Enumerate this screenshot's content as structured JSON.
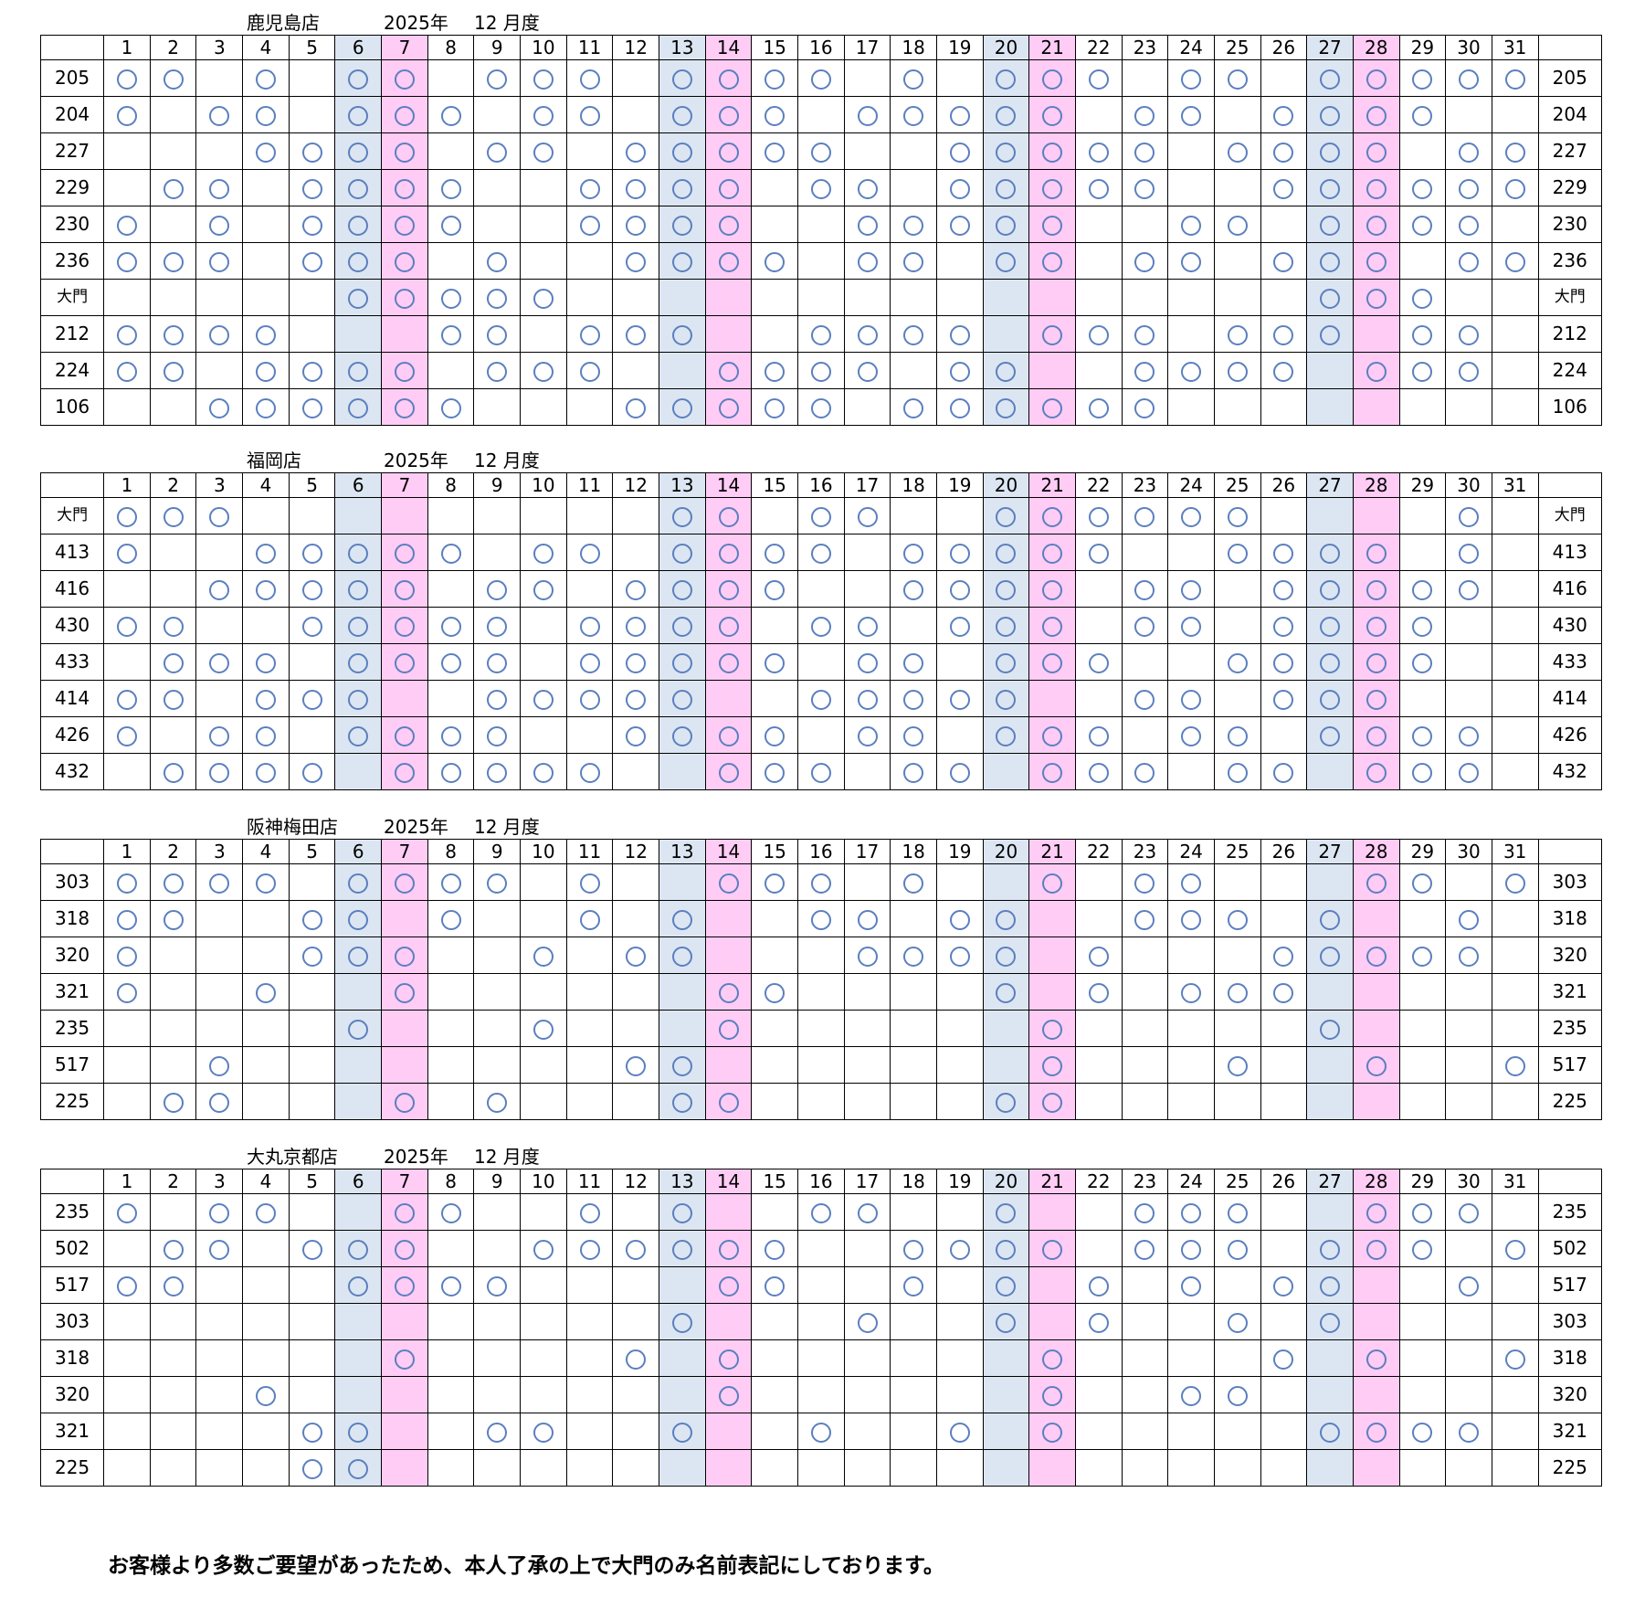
{
  "mark": "〇",
  "colors": {
    "sunday_col": "#dce6f2",
    "holiday_col": "#ffccf5",
    "circle": "#5b7fbf"
  },
  "sunday_days": [
    6,
    13,
    20,
    27
  ],
  "pink_days": [
    7,
    14,
    21,
    28
  ],
  "days": [
    1,
    2,
    3,
    4,
    5,
    6,
    7,
    8,
    9,
    10,
    11,
    12,
    13,
    14,
    15,
    16,
    17,
    18,
    19,
    20,
    21,
    22,
    23,
    24,
    25,
    26,
    27,
    28,
    29,
    30,
    31
  ],
  "stores": [
    {
      "name": "鹿児島店",
      "year": "2025年",
      "month": "12 月度",
      "rows": [
        {
          "label": "205",
          "marks": [
            1,
            2,
            4,
            6,
            7,
            9,
            10,
            11,
            13,
            14,
            15,
            16,
            18,
            20,
            21,
            22,
            24,
            25,
            27,
            28,
            29,
            30,
            31
          ]
        },
        {
          "label": "204",
          "marks": [
            1,
            3,
            4,
            6,
            7,
            8,
            10,
            11,
            13,
            14,
            15,
            17,
            18,
            19,
            20,
            21,
            23,
            24,
            26,
            27,
            28,
            29
          ]
        },
        {
          "label": "227",
          "marks": [
            4,
            5,
            6,
            7,
            9,
            10,
            12,
            13,
            14,
            15,
            16,
            19,
            20,
            21,
            22,
            23,
            25,
            26,
            27,
            28,
            30,
            31
          ]
        },
        {
          "label": "229",
          "marks": [
            2,
            3,
            5,
            6,
            7,
            8,
            11,
            12,
            13,
            14,
            16,
            17,
            19,
            20,
            21,
            22,
            23,
            26,
            27,
            28,
            29,
            30,
            31
          ]
        },
        {
          "label": "230",
          "marks": [
            1,
            3,
            5,
            6,
            7,
            8,
            11,
            12,
            13,
            14,
            17,
            18,
            19,
            20,
            21,
            24,
            25,
            27,
            28,
            29,
            30
          ]
        },
        {
          "label": "236",
          "marks": [
            1,
            2,
            3,
            5,
            6,
            7,
            9,
            12,
            13,
            14,
            15,
            17,
            18,
            20,
            21,
            23,
            24,
            26,
            27,
            28,
            30,
            31
          ]
        },
        {
          "label": "大門",
          "marks": [
            6,
            7,
            8,
            9,
            10,
            27,
            28,
            29
          ]
        },
        {
          "label": "212",
          "marks": [
            1,
            2,
            3,
            4,
            8,
            9,
            11,
            12,
            13,
            16,
            17,
            18,
            19,
            21,
            22,
            23,
            25,
            26,
            27,
            29,
            30
          ]
        },
        {
          "label": "224",
          "marks": [
            1,
            2,
            4,
            5,
            6,
            7,
            9,
            10,
            11,
            14,
            15,
            16,
            17,
            19,
            20,
            23,
            24,
            25,
            26,
            28,
            29,
            30
          ]
        },
        {
          "label": "106",
          "marks": [
            3,
            4,
            5,
            6,
            7,
            8,
            12,
            13,
            14,
            15,
            16,
            18,
            19,
            20,
            21,
            22,
            23
          ]
        }
      ]
    },
    {
      "name": "福岡店",
      "year": "2025年",
      "month": "12 月度",
      "rows": [
        {
          "label": "大門",
          "marks": [
            1,
            2,
            3,
            13,
            14,
            16,
            17,
            20,
            21,
            22,
            23,
            24,
            25,
            30
          ]
        },
        {
          "label": "413",
          "marks": [
            1,
            4,
            5,
            6,
            7,
            8,
            10,
            11,
            13,
            14,
            15,
            16,
            18,
            19,
            20,
            21,
            22,
            25,
            26,
            27,
            28,
            30
          ]
        },
        {
          "label": "416",
          "marks": [
            3,
            4,
            5,
            6,
            7,
            9,
            10,
            12,
            13,
            14,
            15,
            18,
            19,
            20,
            21,
            23,
            24,
            26,
            27,
            28,
            29,
            30
          ]
        },
        {
          "label": "430",
          "marks": [
            1,
            2,
            5,
            6,
            7,
            8,
            9,
            11,
            12,
            13,
            14,
            16,
            17,
            19,
            20,
            21,
            23,
            24,
            26,
            27,
            28,
            29
          ]
        },
        {
          "label": "433",
          "marks": [
            2,
            3,
            4,
            6,
            7,
            8,
            9,
            11,
            12,
            13,
            14,
            15,
            17,
            18,
            20,
            21,
            22,
            25,
            26,
            27,
            28,
            29
          ]
        },
        {
          "label": "414",
          "marks": [
            1,
            2,
            4,
            5,
            6,
            9,
            10,
            11,
            12,
            13,
            16,
            17,
            18,
            19,
            20,
            23,
            24,
            26,
            27,
            28
          ]
        },
        {
          "label": "426",
          "marks": [
            1,
            3,
            4,
            6,
            7,
            8,
            9,
            12,
            13,
            14,
            15,
            17,
            18,
            20,
            21,
            22,
            24,
            25,
            27,
            28,
            29,
            30
          ]
        },
        {
          "label": "432",
          "marks": [
            2,
            3,
            4,
            5,
            7,
            8,
            9,
            10,
            11,
            14,
            15,
            16,
            18,
            19,
            21,
            22,
            23,
            25,
            26,
            28,
            29,
            30
          ]
        }
      ]
    },
    {
      "name": "阪神梅田店",
      "year": "2025年",
      "month": "12 月度",
      "rows": [
        {
          "label": "303",
          "marks": [
            1,
            2,
            3,
            4,
            6,
            7,
            8,
            9,
            11,
            14,
            15,
            16,
            18,
            21,
            23,
            24,
            28,
            29,
            31
          ]
        },
        {
          "label": "318",
          "marks": [
            1,
            2,
            5,
            6,
            8,
            11,
            13,
            16,
            17,
            19,
            20,
            23,
            24,
            25,
            27,
            30
          ]
        },
        {
          "label": "320",
          "marks": [
            1,
            5,
            6,
            7,
            10,
            12,
            13,
            17,
            18,
            19,
            20,
            22,
            26,
            27,
            28,
            29,
            30
          ]
        },
        {
          "label": "321",
          "marks": [
            1,
            4,
            7,
            14,
            15,
            20,
            22,
            24,
            25,
            26
          ]
        },
        {
          "label": "235",
          "marks": [
            6,
            10,
            14,
            21,
            27
          ]
        },
        {
          "label": "517",
          "marks": [
            3,
            12,
            13,
            21,
            25,
            28,
            31
          ]
        },
        {
          "label": "225",
          "marks": [
            2,
            3,
            7,
            9,
            13,
            14,
            20,
            21
          ]
        }
      ]
    },
    {
      "name": "大丸京都店",
      "year": "2025年",
      "month": "12 月度",
      "rows": [
        {
          "label": "235",
          "marks": [
            1,
            3,
            4,
            7,
            8,
            11,
            13,
            16,
            17,
            20,
            23,
            24,
            25,
            28,
            29,
            30
          ]
        },
        {
          "label": "502",
          "marks": [
            2,
            3,
            5,
            6,
            7,
            10,
            11,
            12,
            13,
            14,
            15,
            18,
            19,
            20,
            21,
            23,
            24,
            25,
            27,
            28,
            29,
            31
          ]
        },
        {
          "label": "517",
          "marks": [
            1,
            2,
            6,
            7,
            8,
            9,
            14,
            15,
            18,
            20,
            22,
            24,
            26,
            27,
            30
          ]
        },
        {
          "label": "303",
          "marks": [
            13,
            17,
            20,
            22,
            25,
            27
          ]
        },
        {
          "label": "318",
          "marks": [
            7,
            12,
            14,
            21,
            26,
            28,
            31
          ]
        },
        {
          "label": "320",
          "marks": [
            4,
            14,
            21,
            24,
            25
          ]
        },
        {
          "label": "321",
          "marks": [
            5,
            6,
            9,
            10,
            13,
            16,
            19,
            21,
            27,
            28,
            29,
            30
          ]
        },
        {
          "label": "225",
          "marks": [
            5,
            6
          ]
        }
      ]
    }
  ],
  "footer_note": "お客様より多数ご要望があったため、本人了承の上で大門のみ名前表記にしております。"
}
